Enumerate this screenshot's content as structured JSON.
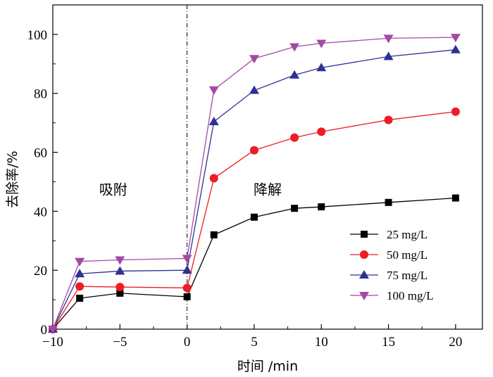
{
  "chart_data": {
    "type": "line",
    "title": "",
    "xlabel": "时间 /min",
    "ylabel": "去除率/%",
    "xlim": [
      -10,
      22
    ],
    "ylim": [
      0,
      110
    ],
    "xticks": [
      -10,
      -5,
      0,
      5,
      10,
      15,
      20
    ],
    "yticks": [
      0,
      20,
      40,
      60,
      80,
      100
    ],
    "x": [
      -10,
      -8,
      -5,
      0,
      2,
      5,
      8,
      10,
      15,
      20
    ],
    "divider_x": 0,
    "annotations": [
      {
        "text": "吸附",
        "x": -5.5,
        "y": 50
      },
      {
        "text": "降解",
        "x": 6,
        "y": 50
      }
    ],
    "legend_position": "bottom-right",
    "series": [
      {
        "name": "25 mg/L",
        "color": "#000000",
        "marker": "square",
        "values": [
          0,
          10.5,
          12.2,
          11.0,
          32.0,
          38.0,
          41.0,
          41.5,
          43.0,
          44.5
        ]
      },
      {
        "name": "50 mg/L",
        "color": "#ee1c24",
        "marker": "circle",
        "values": [
          0,
          14.5,
          14.3,
          14.0,
          51.2,
          60.7,
          65.0,
          67.0,
          71.0,
          73.8
        ]
      },
      {
        "name": "75 mg/L",
        "color": "#2e3192",
        "marker": "triangle-up",
        "values": [
          0,
          18.8,
          19.7,
          20.0,
          70.4,
          81.0,
          86.2,
          88.7,
          92.5,
          94.8
        ]
      },
      {
        "name": "100 mg/L",
        "color": "#a349a4",
        "marker": "triangle-down",
        "values": [
          0,
          23.0,
          23.5,
          24.0,
          81.2,
          91.8,
          95.8,
          97.0,
          98.7,
          99.0
        ]
      }
    ]
  }
}
